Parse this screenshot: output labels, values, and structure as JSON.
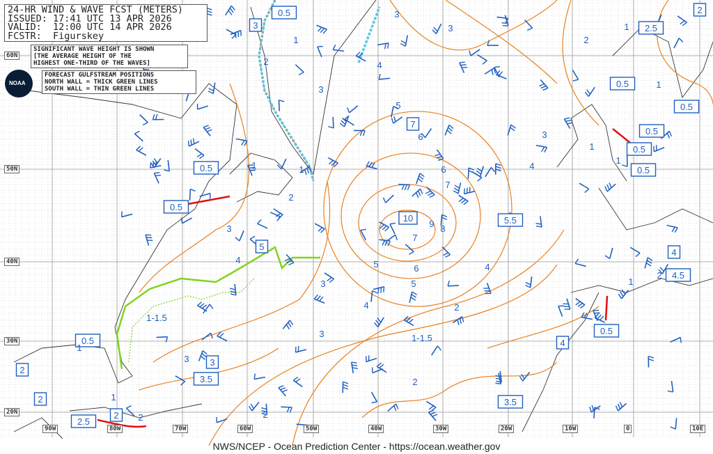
{
  "header": {
    "title_lines": [
      "24-HR WIND & WAVE FCST (METERS)",
      "ISSUED: 17:41 UTC 13 APR 2026",
      "VALID:  12:00 UTC 14 APR 2026",
      "FCSTR:  Figurskey"
    ],
    "sig_wave_note": [
      "SIGNIFICANT WAVE HEIGHT IS SHOWN",
      "[THE AVERAGE HEIGHT OF THE",
      "HIGHEST ONE-THIRD OF THE WAVES]"
    ],
    "gulfstream_note": [
      "FORECAST GULFSTREAM POSITIONS",
      "NORTH WALL = THICK GREEN LINES",
      "SOUTH WALL = THIN GREEN LINES"
    ],
    "logo_text": "NOAA"
  },
  "axes": {
    "latitudes": [
      "60N",
      "50N",
      "40N",
      "30N",
      "20N"
    ],
    "longitudes": [
      "90W",
      "80W",
      "70W",
      "60W",
      "50W",
      "40W",
      "30W",
      "20W",
      "10W",
      "0",
      "10E"
    ]
  },
  "boxed_wave_labels": [
    "0.5",
    "3",
    "0.5",
    "2",
    "2.5",
    "0.5",
    "7",
    "0.5",
    "0.5",
    "0.5",
    "0.5",
    "0.5",
    "10",
    "5.5",
    "5",
    "4",
    "4.5",
    "0.5",
    "0.5",
    "2",
    "2",
    "3",
    "3.5",
    "4",
    "3.5",
    "2.5",
    "2"
  ],
  "wave_labels": [
    "3",
    "3",
    "2",
    "2",
    "1",
    "4",
    "3",
    "5",
    "6",
    "1",
    "1",
    "3",
    "4",
    "6",
    "7",
    "8",
    "9",
    "7",
    "6",
    "5",
    "5",
    "4",
    "3",
    "4",
    "3",
    "1",
    "1",
    "1",
    "2",
    "4",
    "2",
    "2",
    "1",
    "1-1.5",
    "1-1.5",
    "3",
    "2",
    "1",
    "1",
    "2",
    "3",
    "2",
    "1"
  ],
  "colors": {
    "contour": "#e8801f",
    "barb": "#1f5fbf",
    "label": "#1f5fbf",
    "gulfstream": "#7fd320",
    "ice": "#5bc8e8",
    "arrow": "#e01010",
    "land": "#333333"
  },
  "footer": "NWS/NCEP - Ocean Prediction Center - https://ocean.weather.gov"
}
